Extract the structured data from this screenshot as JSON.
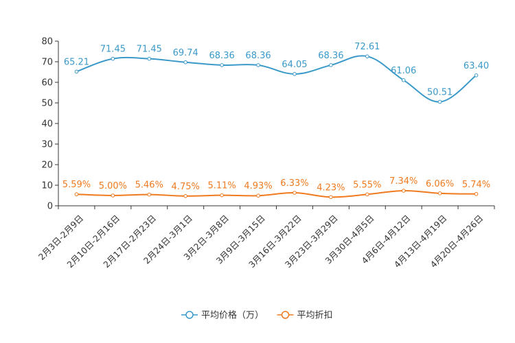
{
  "chart_data": {
    "type": "line",
    "title": "",
    "xlabel": "",
    "ylabel": "",
    "ylim": [
      0,
      80
    ],
    "yticks": [
      0,
      10,
      20,
      30,
      40,
      50,
      60,
      70,
      80
    ],
    "grid": false,
    "legend_position": "bottom-center",
    "categories": [
      "2月3日-2月9日",
      "2月10日-2月16日",
      "2月17日-2月23日",
      "2月24日-3月1日",
      "3月2日-3月8日",
      "3月9日-3月15日",
      "3月16日-3月22日",
      "3月23日-3月29日",
      "3月30日-4月5日",
      "4月6日-4月12日",
      "4月13日-4月19日",
      "4月20日-4月26日"
    ],
    "series": [
      {
        "name": "平均价格（万）",
        "color": "#3a99c9",
        "values": [
          65.21,
          71.45,
          71.45,
          69.74,
          68.36,
          68.36,
          64.05,
          68.36,
          72.61,
          61.06,
          50.51,
          63.4
        ],
        "labels": [
          "65.21",
          "71.45",
          "71.45",
          "69.74",
          "68.36",
          "68.36",
          "64.05",
          "68.36",
          "72.61",
          "61.06",
          "50.51",
          "63.40"
        ]
      },
      {
        "name": "平均折扣",
        "color": "#f07a1f",
        "values": [
          5.59,
          5.0,
          5.46,
          4.75,
          5.11,
          4.93,
          6.33,
          4.23,
          5.55,
          7.34,
          6.06,
          5.74
        ],
        "labels": [
          "5.59%",
          "5.00%",
          "5.46%",
          "4.75%",
          "5.11%",
          "4.93%",
          "6.33%",
          "4.23%",
          "5.55%",
          "7.34%",
          "6.06%",
          "5.74%"
        ]
      }
    ]
  }
}
